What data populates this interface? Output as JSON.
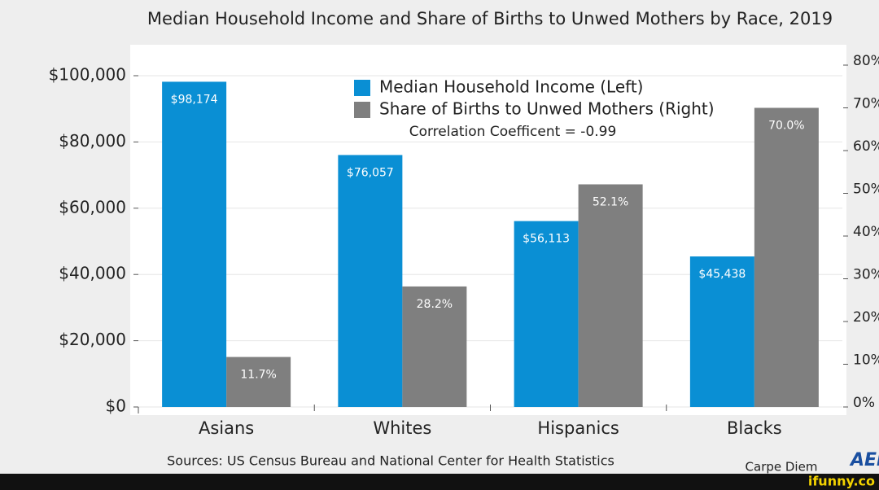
{
  "chart_data": {
    "type": "bar",
    "title": "Median Household Income and Share of Births to Unwed Mothers by Race, 2019",
    "categories": [
      "Asians",
      "Whites",
      "Hispanics",
      "Blacks"
    ],
    "series": [
      {
        "name": "Median Household Income (Left)",
        "color": "#0a8fd4",
        "values": [
          98174,
          76057,
          56113,
          45438
        ],
        "value_labels": [
          "$98,174",
          "$76,057",
          "$56,113",
          "$45,438"
        ]
      },
      {
        "name": "Share of Births to Unwed Mothers (Right)",
        "color": "#7f7f7f",
        "axis": "y2",
        "values": [
          11.7,
          28.2,
          52.1,
          70.0
        ],
        "value_labels": [
          "11.7%",
          "28.2%",
          "52.1%",
          "70.0%"
        ]
      }
    ],
    "ylim": [
      0,
      100000
    ],
    "yticks": [
      {
        "value": 0,
        "label": "$0"
      },
      {
        "value": 20000,
        "label": "$20,000"
      },
      {
        "value": 40000,
        "label": "$40,000"
      },
      {
        "value": 60000,
        "label": "$60,000"
      },
      {
        "value": 80000,
        "label": "$80,000"
      },
      {
        "value": 100000,
        "label": "$100,000"
      }
    ],
    "y2lim": [
      0,
      80
    ],
    "y2ticks": [
      {
        "value": 0,
        "label": "0%"
      },
      {
        "value": 10,
        "label": "10%"
      },
      {
        "value": 20,
        "label": "20%"
      },
      {
        "value": 30,
        "label": "30%"
      },
      {
        "value": 40,
        "label": "40%"
      },
      {
        "value": 50,
        "label": "50%"
      },
      {
        "value": 60,
        "label": "60%"
      },
      {
        "value": 70,
        "label": "70%"
      },
      {
        "value": 80,
        "label": "80%"
      }
    ],
    "grid": true,
    "legend_position": "top",
    "annotation": "Correlation Coefficent = -0.99",
    "source": "Sources: US Census Bureau and National Center for Health Statistics",
    "credit": "Carpe Diem",
    "logo": "AEI",
    "watermark": "ifunny.co"
  }
}
